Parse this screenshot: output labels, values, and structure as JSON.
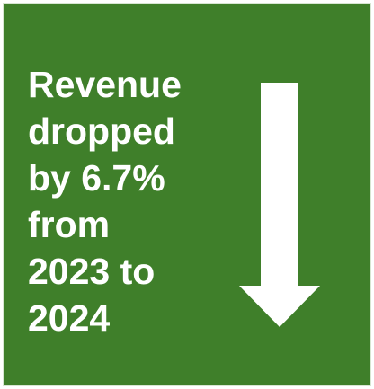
{
  "panel": {
    "background_color": "#3f7f2a",
    "text_color": "#ffffff",
    "headline_lines": [
      "Revenue",
      "dropped",
      "by 6.7%",
      "from",
      "2023 to",
      "2024"
    ]
  },
  "icons": {
    "arrow": "arrow-down-icon"
  }
}
